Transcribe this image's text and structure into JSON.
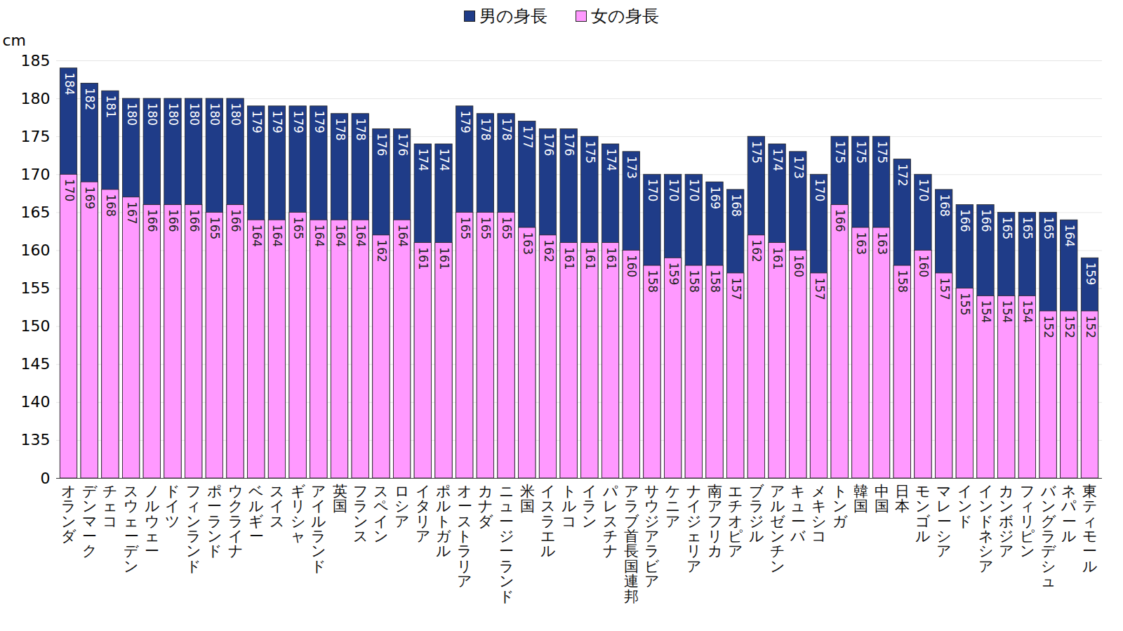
{
  "chart_data": {
    "type": "bar",
    "categories": [
      "オランダ",
      "デンマーク",
      "チェコ",
      "スウェーデン",
      "ノルウェー",
      "ドイツ",
      "フィンランド",
      "ポーランド",
      "ウクライナ",
      "ベルギー",
      "スイス",
      "ギリシャ",
      "アイルランド",
      "英国",
      "フランス",
      "スペイン",
      "ロシア",
      "イタリア",
      "ポルトガル",
      "オーストラリア",
      "カナダ",
      "ニュージーランド",
      "米国",
      "イスラエル",
      "トルコ",
      "イラン",
      "パレスチナ",
      "アラブ首長国連邦",
      "サウジアラビア",
      "ケニア",
      "ナイジェリア",
      "南アフリカ",
      "エチオピア",
      "ブラジル",
      "アルゼンチン",
      "キューバ",
      "メキシコ",
      "トンガ",
      "韓国",
      "中国",
      "日本",
      "モンゴル",
      "マレーシア",
      "インド",
      "インドネシア",
      "カンボジア",
      "フィリピン",
      "バングラデシュ",
      "ネパール",
      "東ティモール"
    ],
    "series": [
      {
        "name": "男の身長",
        "color": "#1f3c88",
        "values": [
          184,
          182,
          181,
          180,
          180,
          180,
          180,
          180,
          180,
          179,
          179,
          179,
          179,
          178,
          178,
          176,
          176,
          174,
          174,
          179,
          178,
          178,
          177,
          176,
          176,
          175,
          174,
          173,
          170,
          170,
          170,
          169,
          168,
          175,
          174,
          173,
          170,
          175,
          175,
          175,
          172,
          170,
          168,
          166,
          166,
          165,
          165,
          165,
          164,
          159
        ]
      },
      {
        "name": "女の身長",
        "color": "#ff99ff",
        "values": [
          170,
          169,
          168,
          167,
          166,
          166,
          166,
          165,
          166,
          164,
          164,
          165,
          164,
          164,
          164,
          162,
          164,
          161,
          161,
          165,
          165,
          165,
          163,
          162,
          161,
          161,
          161,
          160,
          158,
          159,
          158,
          158,
          157,
          162,
          161,
          160,
          157,
          166,
          163,
          163,
          158,
          160,
          157,
          155,
          154,
          154,
          154,
          152,
          152,
          152
        ]
      }
    ],
    "ylabel": "cm",
    "ylim": [
      0,
      185
    ],
    "yticks": [
      0,
      135,
      140,
      145,
      150,
      155,
      160,
      165,
      170,
      175,
      180,
      185
    ],
    "grid": true,
    "legend": "top",
    "data_labels": true
  }
}
